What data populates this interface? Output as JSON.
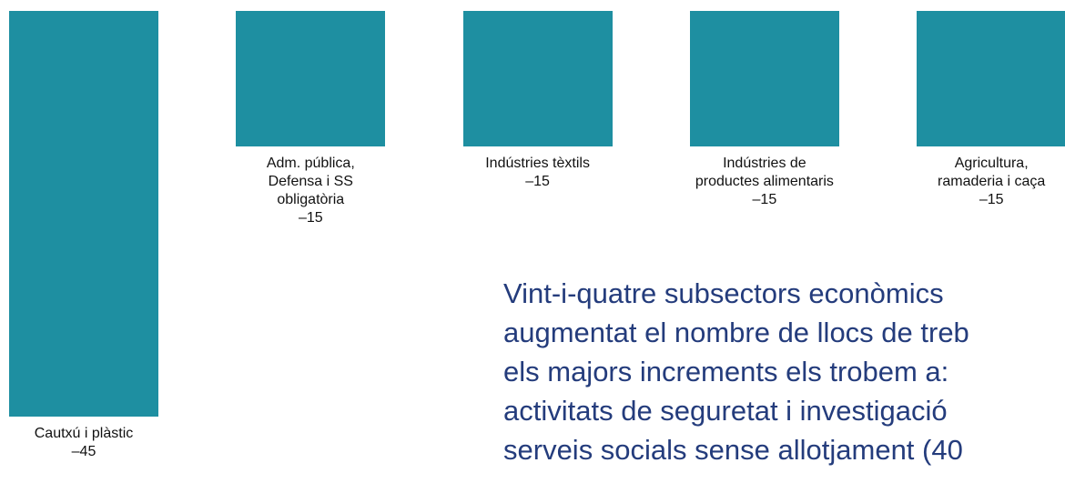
{
  "chart_data": {
    "type": "bar",
    "color": "#1e8fa1",
    "categories": [
      "Cautxú i plàstic",
      "Adm. pública, Defensa i SS obligatòria",
      "Indústries tèxtils",
      "Indústries de productes alimentaris",
      "Agricultura, ramaderia i caça"
    ],
    "values": [
      -45,
      -15,
      -15,
      -15,
      -15
    ],
    "value_labels": [
      "–45",
      "–15",
      "–15",
      "–15",
      "–15"
    ],
    "annotation": [
      "Vint-i-quatre subsectors econòmics",
      "augmentat el nombre de llocs de treb",
      "els majors increments els trobem a:",
      "activitats de seguretat i investigació",
      "serveis socials sense allotjament (40"
    ]
  }
}
